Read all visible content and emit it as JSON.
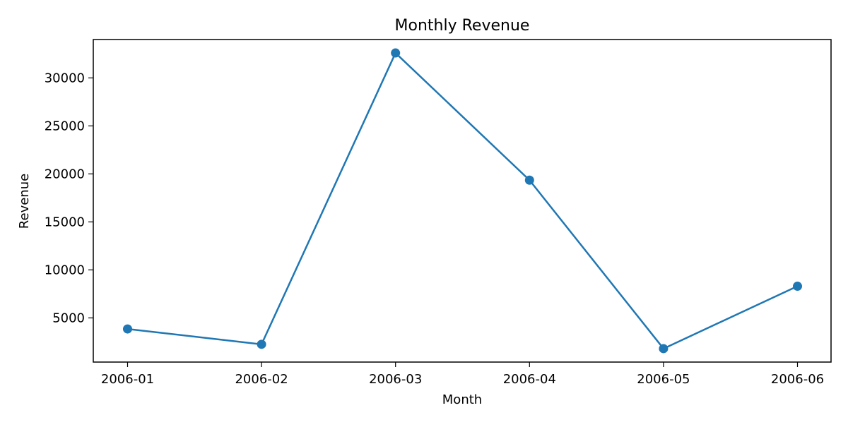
{
  "chart_data": {
    "type": "line",
    "title": "Monthly Revenue",
    "xlabel": "Month",
    "ylabel": "Revenue",
    "categories": [
      "2006-01",
      "2006-02",
      "2006-03",
      "2006-04",
      "2006-05",
      "2006-06"
    ],
    "series": [
      {
        "values": [
          3850,
          2250,
          32600,
          19350,
          1800,
          8300
        ]
      }
    ],
    "ylim": [
      400,
      34000
    ],
    "yticks": [
      5000,
      10000,
      15000,
      20000,
      25000,
      30000
    ],
    "grid": false,
    "colors": {
      "line": "#1f77b4",
      "axes": "#000000"
    }
  }
}
